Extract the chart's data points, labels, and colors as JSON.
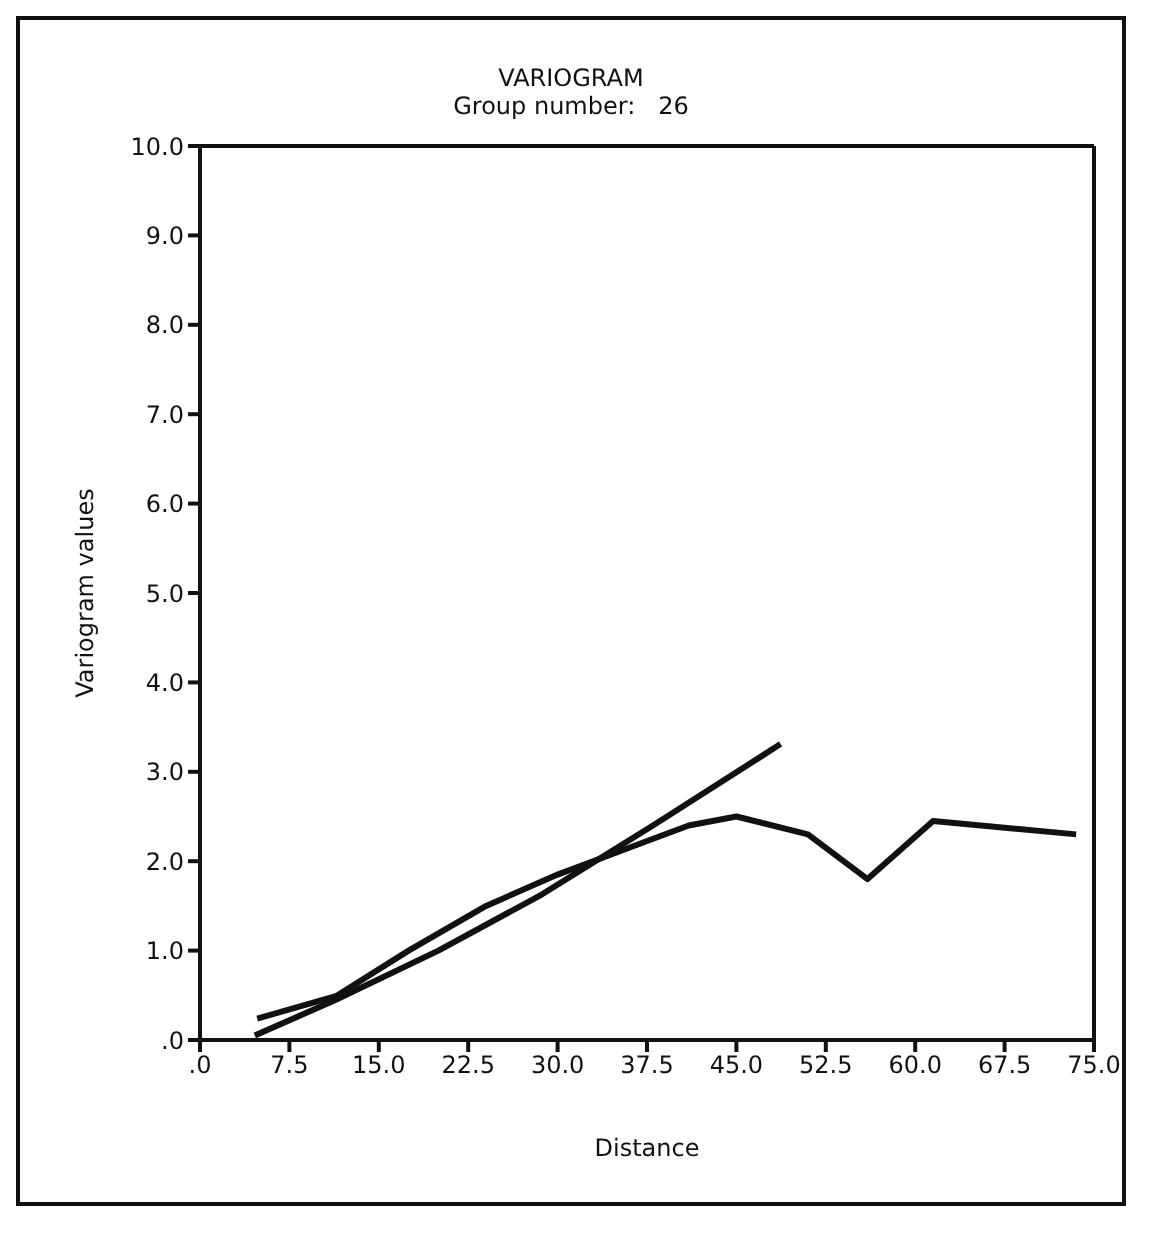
{
  "chart_data": {
    "type": "line",
    "title": "VARIOGRAM",
    "subtitle": "Group number:   26",
    "xlabel": "Distance",
    "ylabel": "Variogram values",
    "xlim": [
      0,
      75
    ],
    "ylim": [
      0,
      10
    ],
    "xticks": [
      {
        "value": 0,
        "label": ".0"
      },
      {
        "value": 7.5,
        "label": "7.5"
      },
      {
        "value": 15,
        "label": "15.0"
      },
      {
        "value": 22.5,
        "label": "22.5"
      },
      {
        "value": 30,
        "label": "30.0"
      },
      {
        "value": 37.5,
        "label": "37.5"
      },
      {
        "value": 45,
        "label": "45.0"
      },
      {
        "value": 52.5,
        "label": "52.5"
      },
      {
        "value": 60,
        "label": "60.0"
      },
      {
        "value": 67.5,
        "label": "67.5"
      },
      {
        "value": 75,
        "label": "75.0"
      }
    ],
    "yticks": [
      {
        "value": 0,
        "label": ".0"
      },
      {
        "value": 1,
        "label": "1.0"
      },
      {
        "value": 2,
        "label": "2.0"
      },
      {
        "value": 3,
        "label": "3.0"
      },
      {
        "value": 4,
        "label": "4.0"
      },
      {
        "value": 5,
        "label": "5.0"
      },
      {
        "value": 6,
        "label": "6.0"
      },
      {
        "value": 7,
        "label": "7.0"
      },
      {
        "value": 8,
        "label": "8.0"
      },
      {
        "value": 9,
        "label": "9.0"
      },
      {
        "value": 10,
        "label": "10.0"
      }
    ],
    "marker": "none",
    "line_style": "solid",
    "series": [
      {
        "color": "#111111",
        "x": [
          4.8,
          11.4,
          17.5,
          24,
          30,
          36,
          41,
          45,
          51,
          56,
          61.5,
          73.5
        ],
        "values": [
          0.24,
          0.49,
          1.0,
          1.5,
          1.85,
          2.15,
          2.4,
          2.5,
          2.3,
          1.8,
          2.45,
          2.3
        ]
      },
      {
        "color": "#111111",
        "x": [
          4.6,
          11.4,
          20,
          28.7,
          38,
          48.7
        ],
        "values": [
          0.05,
          0.45,
          1.0,
          1.63,
          2.4,
          3.31
        ]
      }
    ]
  }
}
